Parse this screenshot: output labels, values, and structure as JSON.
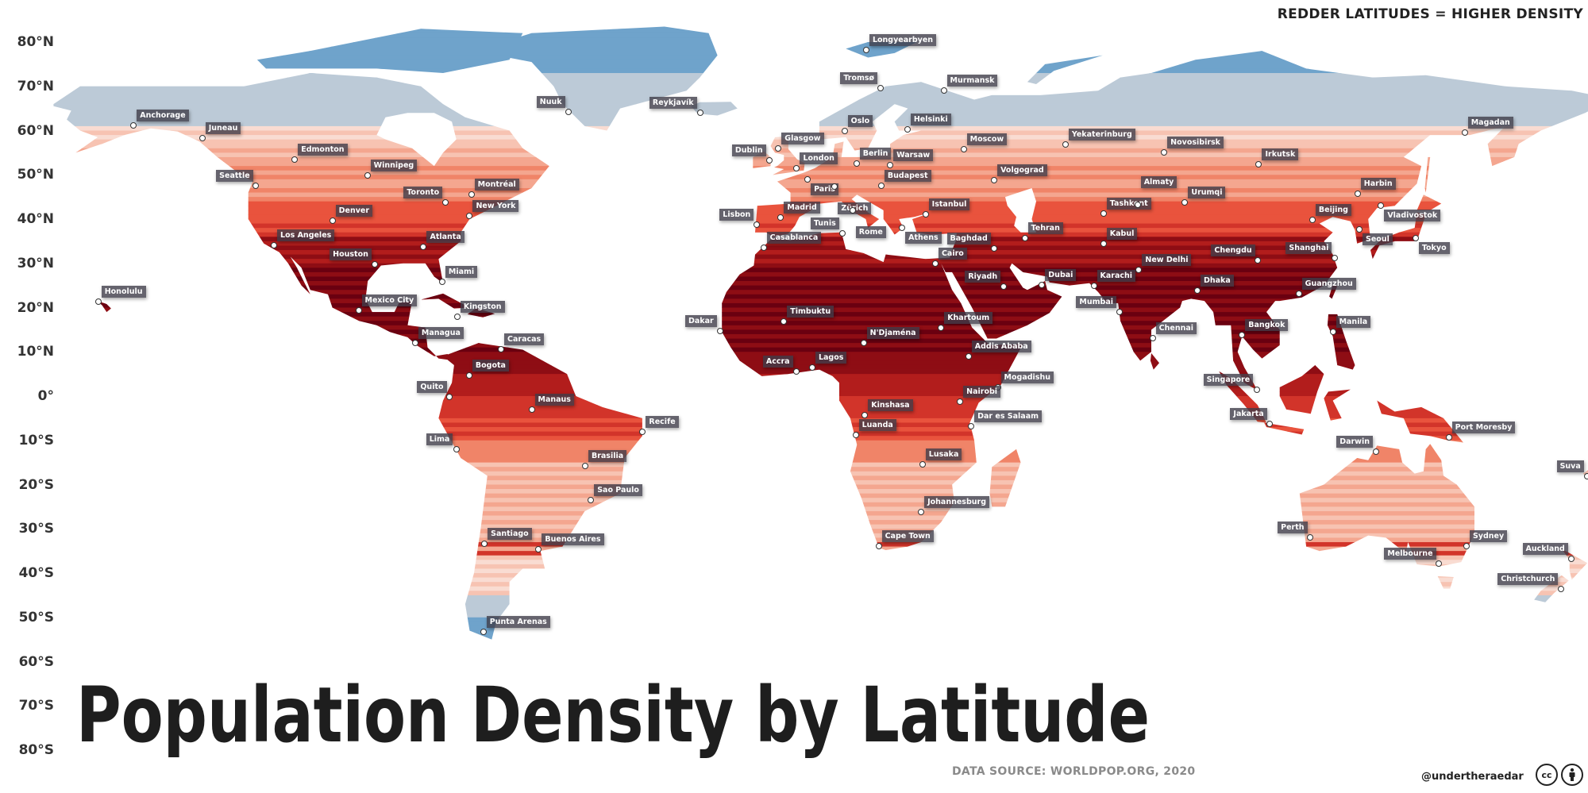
{
  "header": {
    "legend_note": "REDDER LATITUDES = HIGHER DENSITY"
  },
  "title": "Population Density by Latitude",
  "source": "DATA SOURCE: WORLDPOP.ORG, 2020",
  "credit": {
    "handle": "@undertheraedar",
    "icons": [
      "cc-icon",
      "attribution-icon"
    ],
    "cc_text": "cc"
  },
  "colors": {
    "low_density": "#6fa3cb",
    "very_low": "#bccad7",
    "medium": "#f4a68f",
    "high": "#e9533d",
    "highest": "#6a0010",
    "label_bg": "#3e3c48"
  },
  "axis": {
    "latitude_labels": [
      {
        "lat": 80,
        "text": "80°N"
      },
      {
        "lat": 70,
        "text": "70°N"
      },
      {
        "lat": 60,
        "text": "60°N"
      },
      {
        "lat": 50,
        "text": "50°N"
      },
      {
        "lat": 40,
        "text": "40°N"
      },
      {
        "lat": 30,
        "text": "30°N"
      },
      {
        "lat": 20,
        "text": "20°N"
      },
      {
        "lat": 10,
        "text": "10°N"
      },
      {
        "lat": 0,
        "text": "0°"
      },
      {
        "lat": -10,
        "text": "10°S"
      },
      {
        "lat": -20,
        "text": "20°S"
      },
      {
        "lat": -30,
        "text": "30°S"
      },
      {
        "lat": -40,
        "text": "40°S"
      },
      {
        "lat": -50,
        "text": "50°S"
      },
      {
        "lat": -60,
        "text": "60°S"
      },
      {
        "lat": -70,
        "text": "70°S"
      },
      {
        "lat": -80,
        "text": "80°S"
      }
    ]
  },
  "cities": [
    {
      "name": "Longyearbyen",
      "lon": 15.6,
      "lat": 78.2
    },
    {
      "name": "Tromsø",
      "lon": 18.9,
      "lat": 69.6
    },
    {
      "name": "Murmansk",
      "lon": 33.1,
      "lat": 69.0
    },
    {
      "name": "Nuuk",
      "lon": -51.7,
      "lat": 64.2
    },
    {
      "name": "Reykjavík",
      "lon": -21.9,
      "lat": 64.1
    },
    {
      "name": "Anchorage",
      "lon": -149.9,
      "lat": 61.2
    },
    {
      "name": "Juneau",
      "lon": -134.4,
      "lat": 58.3
    },
    {
      "name": "Magadan",
      "lon": 150.8,
      "lat": 59.6
    },
    {
      "name": "Oslo",
      "lon": 10.7,
      "lat": 59.9
    },
    {
      "name": "Helsinki",
      "lon": 24.9,
      "lat": 60.2
    },
    {
      "name": "Glasgow",
      "lon": -4.25,
      "lat": 55.9
    },
    {
      "name": "Dublin",
      "lon": -6.3,
      "lat": 53.3
    },
    {
      "name": "London",
      "lon": -0.1,
      "lat": 51.5
    },
    {
      "name": "Berlin",
      "lon": 13.4,
      "lat": 52.5
    },
    {
      "name": "Warsaw",
      "lon": 21.0,
      "lat": 52.2
    },
    {
      "name": "Moscow",
      "lon": 37.6,
      "lat": 55.8
    },
    {
      "name": "Yekaterinburg",
      "lon": 60.6,
      "lat": 56.8
    },
    {
      "name": "Novosibirsk",
      "lon": 82.9,
      "lat": 55.0
    },
    {
      "name": "Irkutsk",
      "lon": 104.3,
      "lat": 52.3
    },
    {
      "name": "Paris",
      "lon": 2.35,
      "lat": 48.9
    },
    {
      "name": "Zürich",
      "lon": 8.5,
      "lat": 47.4
    },
    {
      "name": "Budapest",
      "lon": 19.0,
      "lat": 47.5
    },
    {
      "name": "Volgograd",
      "lon": 44.5,
      "lat": 48.7
    },
    {
      "name": "Edmonton",
      "lon": -113.5,
      "lat": 53.5
    },
    {
      "name": "Winnipeg",
      "lon": -97.1,
      "lat": 49.9
    },
    {
      "name": "Seattle",
      "lon": -122.3,
      "lat": 47.6
    },
    {
      "name": "Toronto",
      "lon": -79.4,
      "lat": 43.7
    },
    {
      "name": "Montréal",
      "lon": -73.6,
      "lat": 45.5
    },
    {
      "name": "New York",
      "lon": -74.0,
      "lat": 40.7
    },
    {
      "name": "Denver",
      "lon": -105.0,
      "lat": 39.7
    },
    {
      "name": "Los Angeles",
      "lon": -118.2,
      "lat": 34.05
    },
    {
      "name": "Atlanta",
      "lon": -84.4,
      "lat": 33.75
    },
    {
      "name": "Houston",
      "lon": -95.4,
      "lat": 29.8
    },
    {
      "name": "Miami",
      "lon": -80.2,
      "lat": 25.8
    },
    {
      "name": "Honolulu",
      "lon": -157.9,
      "lat": 21.3
    },
    {
      "name": "Mexico City",
      "lon": -99.1,
      "lat": 19.4
    },
    {
      "name": "Kingston",
      "lon": -76.8,
      "lat": 18.0
    },
    {
      "name": "Managua",
      "lon": -86.3,
      "lat": 12.1
    },
    {
      "name": "Caracas",
      "lon": -66.9,
      "lat": 10.5
    },
    {
      "name": "Bogota",
      "lon": -74.1,
      "lat": 4.7
    },
    {
      "name": "Quito",
      "lon": -78.5,
      "lat": -0.2
    },
    {
      "name": "Manaus",
      "lon": -60.0,
      "lat": -3.1
    },
    {
      "name": "Recife",
      "lon": -34.9,
      "lat": -8.05
    },
    {
      "name": "Lima",
      "lon": -77.0,
      "lat": -12.05
    },
    {
      "name": "Brasilia",
      "lon": -47.9,
      "lat": -15.8
    },
    {
      "name": "Sao Paulo",
      "lon": -46.6,
      "lat": -23.55
    },
    {
      "name": "Santiago",
      "lon": -70.65,
      "lat": -33.45
    },
    {
      "name": "Buenos Aires",
      "lon": -58.4,
      "lat": -34.6
    },
    {
      "name": "Punta Arenas",
      "lon": -70.9,
      "lat": -53.2
    },
    {
      "name": "Lisbon",
      "lon": -9.1,
      "lat": 38.7
    },
    {
      "name": "Madrid",
      "lon": -3.7,
      "lat": 40.4
    },
    {
      "name": "Rome",
      "lon": 12.5,
      "lat": 41.9
    },
    {
      "name": "Istanbul",
      "lon": 29.0,
      "lat": 41.0
    },
    {
      "name": "Athens",
      "lon": 23.7,
      "lat": 38.0
    },
    {
      "name": "Tunis",
      "lon": 10.2,
      "lat": 36.8
    },
    {
      "name": "Casablanca",
      "lon": -7.6,
      "lat": 33.6
    },
    {
      "name": "Cairo",
      "lon": 31.2,
      "lat": 30.0
    },
    {
      "name": "Baghdad",
      "lon": 44.4,
      "lat": 33.3
    },
    {
      "name": "Tehran",
      "lon": 51.4,
      "lat": 35.7
    },
    {
      "name": "Kabul",
      "lon": 69.2,
      "lat": 34.5
    },
    {
      "name": "Tashkent",
      "lon": 69.2,
      "lat": 41.3
    },
    {
      "name": "Almaty",
      "lon": 76.9,
      "lat": 43.2
    },
    {
      "name": "Urumqi",
      "lon": 87.6,
      "lat": 43.8
    },
    {
      "name": "Harbin",
      "lon": 126.6,
      "lat": 45.8
    },
    {
      "name": "Vladivostok",
      "lon": 131.9,
      "lat": 43.1
    },
    {
      "name": "Beijing",
      "lon": 116.4,
      "lat": 39.9
    },
    {
      "name": "Seoul",
      "lon": 127.0,
      "lat": 37.6
    },
    {
      "name": "Tokyo",
      "lon": 139.7,
      "lat": 35.7
    },
    {
      "name": "Shanghai",
      "lon": 121.5,
      "lat": 31.2
    },
    {
      "name": "Chengdu",
      "lon": 104.1,
      "lat": 30.7
    },
    {
      "name": "New Delhi",
      "lon": 77.2,
      "lat": 28.6
    },
    {
      "name": "Karachi",
      "lon": 67.0,
      "lat": 24.9
    },
    {
      "name": "Riyadh",
      "lon": 46.7,
      "lat": 24.7
    },
    {
      "name": "Dubai",
      "lon": 55.3,
      "lat": 25.2
    },
    {
      "name": "Dhaka",
      "lon": 90.4,
      "lat": 23.8
    },
    {
      "name": "Guangzhou",
      "lon": 113.3,
      "lat": 23.1
    },
    {
      "name": "Mumbai",
      "lon": 72.9,
      "lat": 19.1
    },
    {
      "name": "Chennai",
      "lon": 80.3,
      "lat": 13.1
    },
    {
      "name": "Bangkok",
      "lon": 100.5,
      "lat": 13.75
    },
    {
      "name": "Manila",
      "lon": 121.0,
      "lat": 14.6
    },
    {
      "name": "Timbuktu",
      "lon": -3.0,
      "lat": 16.8
    },
    {
      "name": "Dakar",
      "lon": -17.4,
      "lat": 14.7
    },
    {
      "name": "N'Djaména",
      "lon": 15.0,
      "lat": 12.1
    },
    {
      "name": "Khartoum",
      "lon": 32.5,
      "lat": 15.5
    },
    {
      "name": "Addis Ababa",
      "lon": 38.7,
      "lat": 9.0
    },
    {
      "name": "Accra",
      "lon": -0.2,
      "lat": 5.6
    },
    {
      "name": "Lagos",
      "lon": 3.4,
      "lat": 6.5
    },
    {
      "name": "Mogadishu",
      "lon": 45.3,
      "lat": 2.05
    },
    {
      "name": "Nairobi",
      "lon": 36.8,
      "lat": -1.3
    },
    {
      "name": "Kinshasa",
      "lon": 15.3,
      "lat": -4.3
    },
    {
      "name": "Dar es Salaam",
      "lon": 39.3,
      "lat": -6.8
    },
    {
      "name": "Luanda",
      "lon": 13.2,
      "lat": -8.8
    },
    {
      "name": "Singapore",
      "lon": 103.8,
      "lat": 1.35
    },
    {
      "name": "Jakarta",
      "lon": 106.8,
      "lat": -6.2
    },
    {
      "name": "Port Moresby",
      "lon": 147.2,
      "lat": -9.4
    },
    {
      "name": "Darwin",
      "lon": 130.8,
      "lat": -12.5
    },
    {
      "name": "Lusaka",
      "lon": 28.3,
      "lat": -15.4
    },
    {
      "name": "Suva",
      "lon": 178.4,
      "lat": -18.1
    },
    {
      "name": "Johannesburg",
      "lon": 28.0,
      "lat": -26.2
    },
    {
      "name": "Cape Town",
      "lon": 18.4,
      "lat": -33.9
    },
    {
      "name": "Perth",
      "lon": 115.9,
      "lat": -31.95
    },
    {
      "name": "Sydney",
      "lon": 151.2,
      "lat": -33.9
    },
    {
      "name": "Melbourne",
      "lon": 145.0,
      "lat": -37.8
    },
    {
      "name": "Auckland",
      "lon": 174.8,
      "lat": -36.85
    },
    {
      "name": "Christchurch",
      "lon": 172.6,
      "lat": -43.5
    }
  ]
}
